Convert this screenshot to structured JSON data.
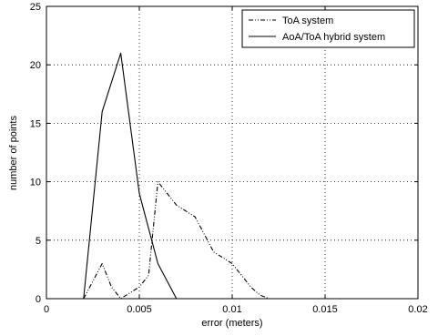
{
  "chart_data": {
    "type": "line",
    "title": "",
    "xlabel": "error (meters)",
    "ylabel": "number of points",
    "xlim": [
      0,
      0.02
    ],
    "ylim": [
      0,
      25
    ],
    "xticks": [
      0,
      0.005,
      0.01,
      0.015,
      0.02
    ],
    "xtick_labels": [
      "0",
      "0.005",
      "0.01",
      "0.015",
      "0.02"
    ],
    "yticks": [
      0,
      5,
      10,
      15,
      20,
      25
    ],
    "ytick_labels": [
      "0",
      "5",
      "10",
      "15",
      "20",
      "25"
    ],
    "grid": true,
    "legend_position": "top-right",
    "series": [
      {
        "name": "ToA system",
        "line_style": "dash-dot",
        "color": "#000000",
        "x": [
          0.002,
          0.003,
          0.0035,
          0.004,
          0.0045,
          0.005,
          0.0055,
          0.006,
          0.0065,
          0.007,
          0.0075,
          0.008,
          0.0085,
          0.009,
          0.0095,
          0.01,
          0.0105,
          0.011,
          0.0115,
          0.012
        ],
        "y": [
          0,
          3,
          1,
          0,
          0.5,
          1,
          2,
          10,
          9,
          8,
          7.5,
          7,
          5.5,
          4,
          3.5,
          3,
          2,
          1,
          0.3,
          0
        ]
      },
      {
        "name": "AoA/ToA hybrid system",
        "line_style": "solid",
        "color": "#000000",
        "x": [
          0.001,
          0.002,
          0.003,
          0.004,
          0.0045,
          0.005,
          0.0055,
          0.006,
          0.0065,
          0.007
        ],
        "y": [
          0,
          0,
          16,
          21,
          15,
          9,
          6,
          3,
          1.5,
          0
        ]
      }
    ]
  }
}
